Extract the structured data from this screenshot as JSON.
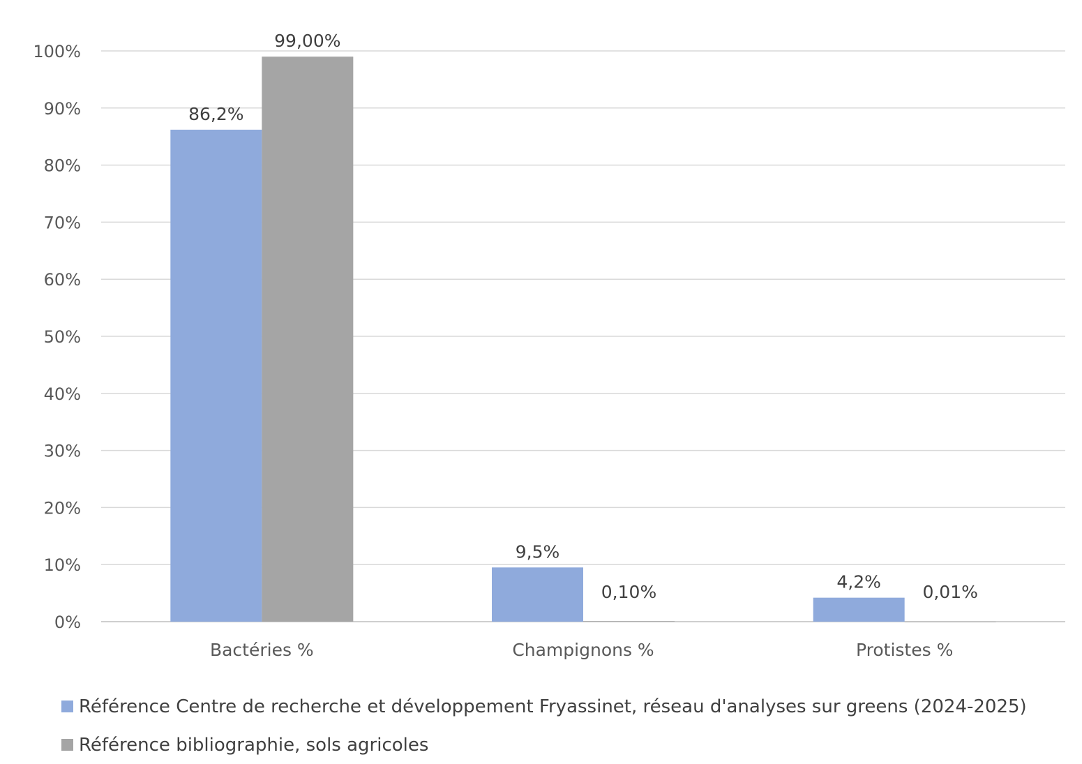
{
  "chart_data": {
    "type": "bar",
    "categories": [
      "Bactéries %",
      "Champignons %",
      "Protistes %"
    ],
    "series": [
      {
        "name": "Référence Centre de recherche et développement Fryassinet,  réseau d'analyses sur greens (2024-2025)",
        "values": [
          86.2,
          9.5,
          4.2
        ],
        "labels": [
          "86,2%",
          "9,5%",
          "4,2%"
        ],
        "color": "#8faadc"
      },
      {
        "name": "Référence bibliographie, sols agricoles",
        "values": [
          99.0,
          0.1,
          0.01
        ],
        "labels": [
          "99,00%",
          "0,10%",
          "0,01%"
        ],
        "color": "#a5a5a5"
      }
    ],
    "yticks": [
      "0%",
      "10%",
      "20%",
      "30%",
      "40%",
      "50%",
      "60%",
      "70%",
      "80%",
      "90%",
      "100%"
    ],
    "ylim": [
      0,
      100
    ],
    "grid": true,
    "legend_position": "bottom-left",
    "title": "",
    "xlabel": "",
    "ylabel": ""
  }
}
